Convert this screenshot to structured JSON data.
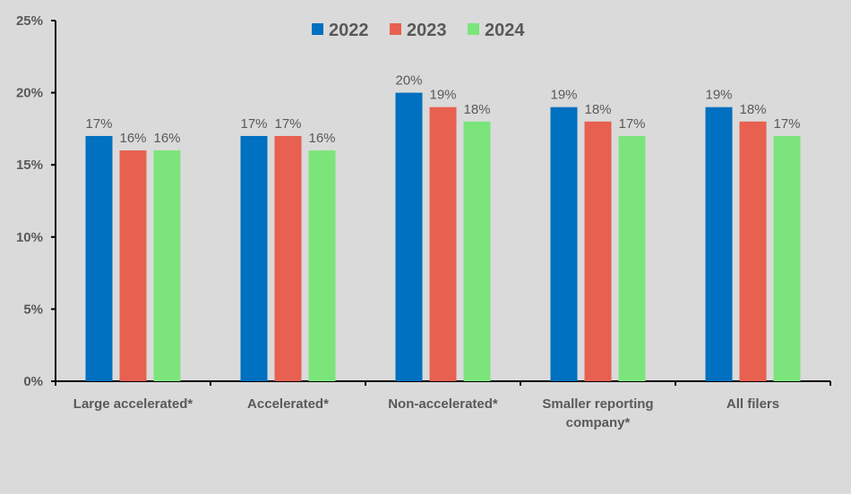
{
  "chart_data": {
    "type": "bar",
    "categories": [
      [
        "Large accelerated*"
      ],
      [
        "Accelerated*"
      ],
      [
        "Non-accelerated*"
      ],
      [
        "Smaller reporting",
        "company*"
      ],
      [
        "All filers"
      ]
    ],
    "series": [
      {
        "name": "2022",
        "color": "#0070C0",
        "values": [
          17,
          17,
          20,
          19,
          19
        ],
        "labels": [
          "17%",
          "17%",
          "20%",
          "19%",
          "19%"
        ]
      },
      {
        "name": "2023",
        "color": "#E8604F",
        "values": [
          16,
          17,
          19,
          18,
          18
        ],
        "labels": [
          "16%",
          "17%",
          "19%",
          "18%",
          "18%"
        ]
      },
      {
        "name": "2024",
        "color": "#7BE57B",
        "values": [
          16,
          16,
          18,
          17,
          17
        ],
        "labels": [
          "16%",
          "16%",
          "18%",
          "17%",
          "17%"
        ]
      }
    ],
    "yticks": [
      "0%",
      "5%",
      "10%",
      "15%",
      "20%",
      "25%"
    ],
    "ylim": [
      0,
      25
    ],
    "ylabel": "",
    "xlabel": "",
    "legend": "top-center",
    "grid": false,
    "background": "#DADADA"
  }
}
